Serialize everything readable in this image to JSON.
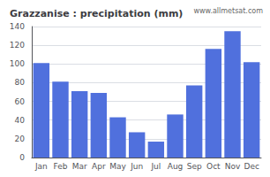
{
  "chart_data": {
    "type": "bar",
    "title": "Grazzanise : precipitation (mm)",
    "categories": [
      "Jan",
      "Feb",
      "Mar",
      "Apr",
      "May",
      "Jun",
      "Jul",
      "Aug",
      "Sep",
      "Oct",
      "Nov",
      "Dec"
    ],
    "values": [
      101,
      81,
      71,
      69,
      43,
      27,
      17,
      46,
      77,
      116,
      135,
      102
    ],
    "ylim": [
      0,
      140
    ],
    "yticks": [
      0,
      20,
      40,
      60,
      80,
      100,
      120,
      140
    ],
    "grid": true,
    "annotations": [
      "www.allmetsat.com"
    ]
  }
}
